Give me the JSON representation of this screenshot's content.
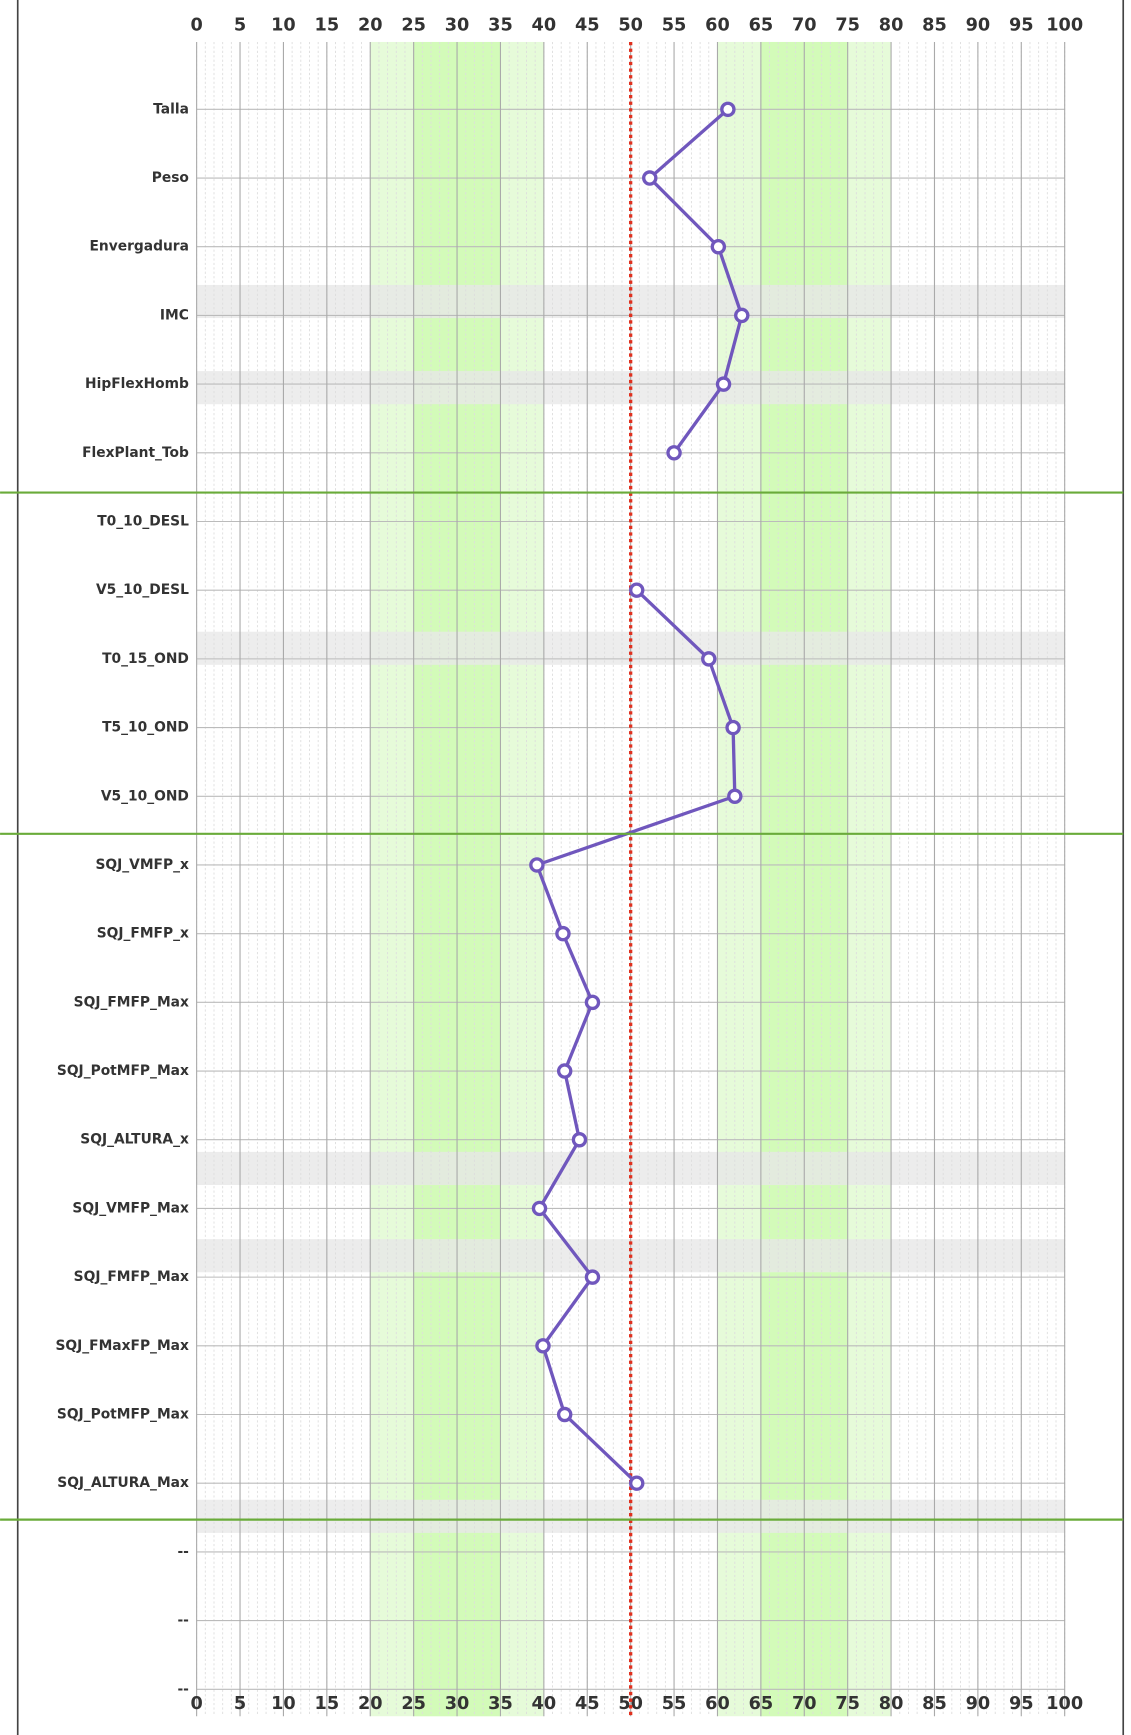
{
  "chart_data": {
    "type": "line",
    "orientation": "horizontal",
    "categories": [
      "Talla",
      "Peso",
      "Envergadura",
      "IMC",
      "HipFlexHomb",
      "FlexPlant_Tob",
      "T0_10_DESL",
      "V5_10_DESL",
      "T0_15_OND",
      "T5_10_OND",
      "V5_10_OND",
      "SQJ_VMFP_x",
      "SQJ_FMFP_x",
      "SQJ_FMFP_Max",
      "SQJ_PotMFP_Max",
      "SQJ_ALTURA_x",
      "SQJ_VMFP_Max",
      "SQJ_FMFP_Max",
      "SQJ_FMaxFP_Max",
      "SQJ_PotMFP_Max",
      "SQJ_ALTURA_Max",
      "--",
      "--",
      "--"
    ],
    "series": [
      {
        "color": "#7057bd",
        "values": [
          61.2,
          52.2,
          60.1,
          62.8,
          60.7,
          55,
          null,
          50.7,
          59,
          61.8,
          62,
          39.2,
          42.2,
          45.6,
          42.4,
          44.1,
          39.5,
          45.6,
          39.9,
          42.4,
          50.7,
          null,
          null,
          null
        ]
      }
    ],
    "xlim": [
      0,
      100
    ],
    "xticks": [
      0,
      5,
      10,
      15,
      20,
      25,
      30,
      35,
      40,
      45,
      50,
      55,
      60,
      65,
      70,
      75,
      80,
      85,
      90,
      95,
      100
    ],
    "reference_line": 50,
    "grid": true,
    "bands": [
      {
        "range": [
          20,
          40
        ],
        "color": "#e6fbd9"
      },
      {
        "range": [
          25,
          35
        ],
        "color": "#d3fbb9"
      },
      {
        "range": [
          60,
          80
        ],
        "color": "#e6fbd9"
      },
      {
        "range": [
          65,
          75
        ],
        "color": "#d3fbb9"
      }
    ]
  }
}
